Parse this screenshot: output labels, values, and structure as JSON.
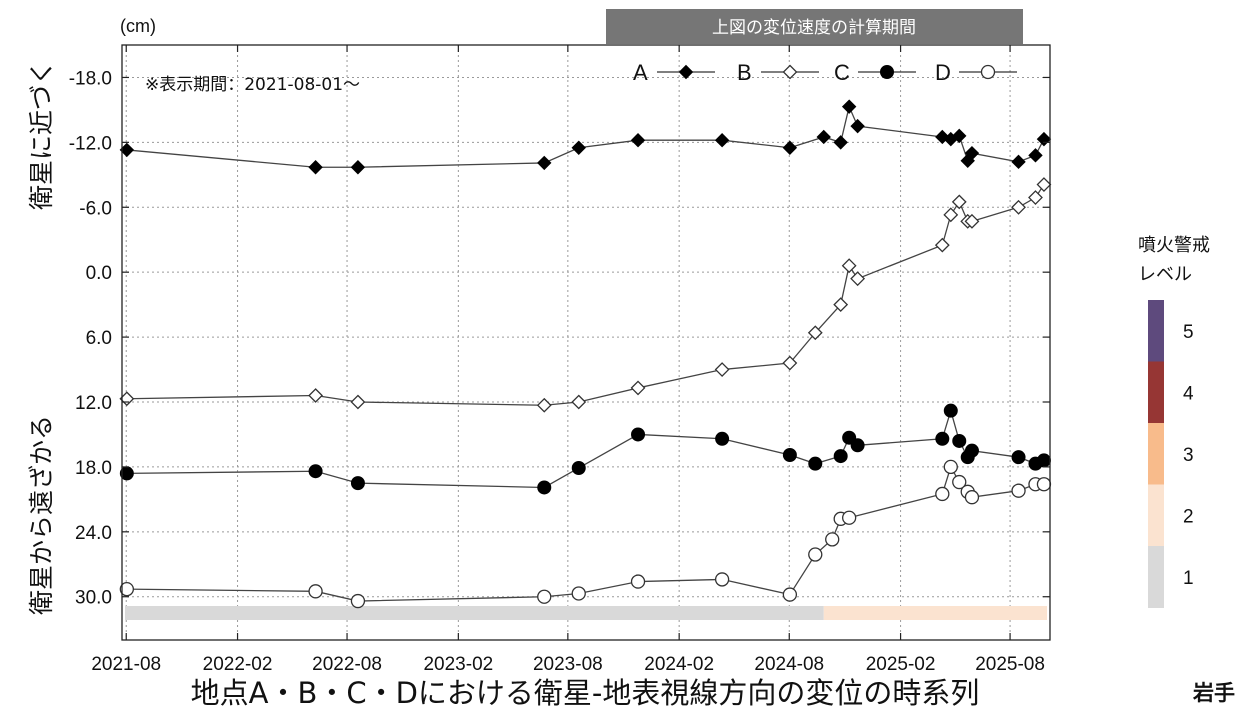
{
  "chart_data": {
    "type": "line",
    "title": "",
    "unit_label": "(cm)",
    "period_note": "※表示期間：2021-08-01～",
    "banner": "上図の変位速度の計算期間",
    "xlabel": "地点A・B・C・Dにおける衛星-地表視線方向の変位の時系列",
    "ylabel_top": "衛星に近づく",
    "ylabel_bottom": "衛星から遠ざかる",
    "ylim": [
      -21.0,
      34.0
    ],
    "y_inverted": true,
    "grid": true,
    "y_ticks": [
      -18.0,
      -12.0,
      -6.0,
      0.0,
      6.0,
      12.0,
      18.0,
      24.0,
      30.0
    ],
    "y_tick_labels": [
      "-18.0",
      "-12.0",
      "-6.0",
      "0.0",
      "6.0",
      "12.0",
      "18.0",
      "24.0",
      "30.0"
    ],
    "x_ticks": [
      "2021-08",
      "2022-02",
      "2022-08",
      "2023-02",
      "2023-08",
      "2024-02",
      "2024-08",
      "2025-02",
      "2025-08"
    ],
    "x_tick_labels": [
      "2021-08",
      "2022-02",
      "2022-08",
      "2023-02",
      "2023-08",
      "2024-02",
      "2024-08",
      "2025-02",
      "2025-08"
    ],
    "legend_position": "top-right",
    "series": [
      {
        "name": "A",
        "marker": "filled-diamond",
        "x": [
          "2021-08-02",
          "2022-06-10",
          "2022-08-19",
          "2023-06-23",
          "2023-08-19",
          "2023-11-25",
          "2024-04-12",
          "2024-08-02",
          "2024-09-27",
          "2024-10-25",
          "2024-11-08",
          "2024-11-22",
          "2025-04-11",
          "2025-04-25",
          "2025-05-09",
          "2025-05-23",
          "2025-05-30",
          "2025-08-15",
          "2025-09-12",
          "2025-09-26"
        ],
        "y": [
          -11.3,
          -9.7,
          -9.7,
          -10.1,
          -11.5,
          -12.2,
          -12.2,
          -11.5,
          -12.5,
          -12.0,
          -15.3,
          -13.5,
          -12.5,
          -12.3,
          -12.6,
          -10.3,
          -11.0,
          -10.2,
          -10.8,
          -12.3
        ]
      },
      {
        "name": "B",
        "marker": "open-diamond",
        "x": [
          "2021-08-02",
          "2022-06-10",
          "2022-08-19",
          "2023-06-23",
          "2023-08-19",
          "2023-11-25",
          "2024-04-12",
          "2024-08-02",
          "2024-09-13",
          "2024-10-25",
          "2024-11-08",
          "2024-11-22",
          "2025-04-11",
          "2025-04-25",
          "2025-05-09",
          "2025-05-23",
          "2025-05-30",
          "2025-08-15",
          "2025-09-12",
          "2025-09-26"
        ],
        "y": [
          11.7,
          11.4,
          12.0,
          12.3,
          12.0,
          10.7,
          9.0,
          8.4,
          5.6,
          3.0,
          -0.6,
          0.6,
          -2.5,
          -5.3,
          -6.5,
          -4.7,
          -4.7,
          -6.0,
          -6.9,
          -8.1
        ]
      },
      {
        "name": "C",
        "marker": "filled-circle",
        "x": [
          "2021-08-02",
          "2022-06-10",
          "2022-08-19",
          "2023-06-23",
          "2023-08-19",
          "2023-11-25",
          "2024-04-12",
          "2024-08-02",
          "2024-09-13",
          "2024-10-25",
          "2024-11-08",
          "2024-11-22",
          "2025-04-11",
          "2025-04-25",
          "2025-05-09",
          "2025-05-23",
          "2025-05-30",
          "2025-08-15",
          "2025-09-12",
          "2025-09-26"
        ],
        "y": [
          18.6,
          18.4,
          19.5,
          19.9,
          18.1,
          15.0,
          15.4,
          16.9,
          17.7,
          17.0,
          15.3,
          16.0,
          15.4,
          12.8,
          15.6,
          17.1,
          16.5,
          17.1,
          17.7,
          17.4
        ]
      },
      {
        "name": "D",
        "marker": "open-circle",
        "x": [
          "2021-08-02",
          "2022-06-10",
          "2022-08-19",
          "2023-06-23",
          "2023-08-19",
          "2023-11-25",
          "2024-04-12",
          "2024-08-02",
          "2024-09-13",
          "2024-10-11",
          "2024-10-25",
          "2024-11-08",
          "2025-04-11",
          "2025-04-25",
          "2025-05-09",
          "2025-05-23",
          "2025-05-30",
          "2025-08-15",
          "2025-09-12",
          "2025-09-26"
        ],
        "y": [
          29.3,
          29.5,
          30.4,
          30.0,
          29.7,
          28.6,
          28.4,
          29.8,
          26.1,
          24.7,
          22.8,
          22.7,
          20.5,
          18.0,
          19.4,
          20.3,
          20.8,
          20.2,
          19.6,
          19.6
        ]
      }
    ],
    "bottom_bar": [
      {
        "from": "2021-07-25",
        "to": "2024-09-27",
        "color": "#d9d9d9"
      },
      {
        "from": "2024-09-27",
        "to": "2025-10-06",
        "color": "#fbe3d0"
      }
    ]
  },
  "alert_level_scale": {
    "title_line1": "噴火警戒",
    "title_line2": "レベル",
    "levels": [
      {
        "label": "5",
        "color": "#5e4a7d"
      },
      {
        "label": "4",
        "color": "#963634"
      },
      {
        "label": "3",
        "color": "#f8bb8b"
      },
      {
        "label": "2",
        "color": "#fbe3d0"
      },
      {
        "label": "1",
        "color": "#d9d9d9"
      }
    ]
  },
  "bottom_right_text": "岩手"
}
